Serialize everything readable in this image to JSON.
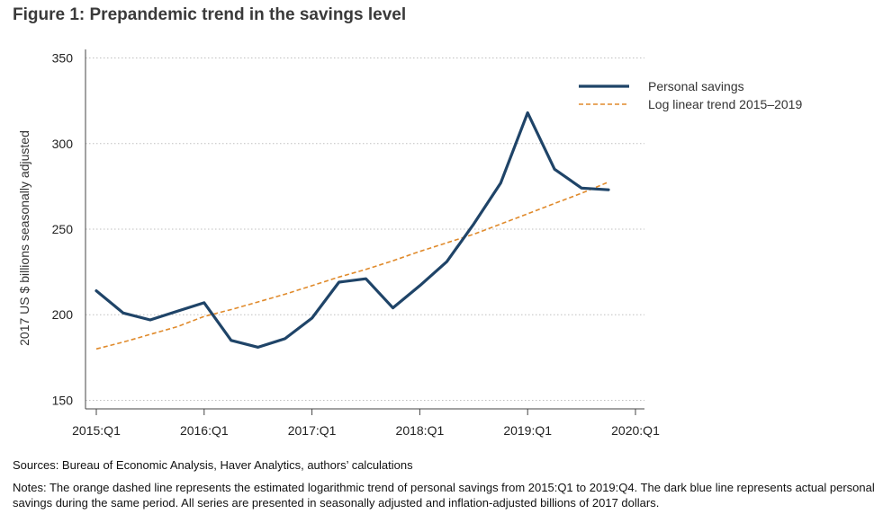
{
  "figure": {
    "title": "Figure 1: Prepandemic trend in the savings level",
    "sources": "Sources: Bureau of Economic Analysis, Haver Analytics, authors’ calculations",
    "notes": "Notes: The orange dashed line represents the estimated logarithmic trend of personal savings from 2015:Q1 to 2019:Q4. The dark blue line represents actual personal savings during the same period. All series are presented in seasonally adjusted and inflation-adjusted billions of 2017 dollars."
  },
  "chart_data": {
    "type": "line",
    "title": "Figure 1: Prepandemic trend in the savings level",
    "xlabel": "",
    "ylabel": "2017 US $ billions seasonally adjusted",
    "ylim": [
      145,
      355
    ],
    "yticks": [
      150,
      200,
      250,
      300,
      350
    ],
    "xticks": [
      {
        "label": "2015:Q1",
        "index": 0
      },
      {
        "label": "2016:Q1",
        "index": 4
      },
      {
        "label": "2017:Q1",
        "index": 8
      },
      {
        "label": "2018:Q1",
        "index": 12
      },
      {
        "label": "2019:Q1",
        "index": 16
      },
      {
        "label": "2020:Q1",
        "index": 20
      }
    ],
    "x_index_range": [
      0,
      20
    ],
    "grid": "horizontal dotted",
    "legend_position": "top-right",
    "categories": [
      "2015:Q1",
      "2015:Q2",
      "2015:Q3",
      "2015:Q4",
      "2016:Q1",
      "2016:Q2",
      "2016:Q3",
      "2016:Q4",
      "2017:Q1",
      "2017:Q2",
      "2017:Q3",
      "2017:Q4",
      "2018:Q1",
      "2018:Q2",
      "2018:Q3",
      "2018:Q4",
      "2019:Q1",
      "2019:Q2",
      "2019:Q3",
      "2019:Q4"
    ],
    "series": [
      {
        "name": "Personal savings",
        "color": "#1f4468",
        "style": "solid",
        "values": [
          214,
          201,
          197,
          202,
          207,
          185,
          181,
          186,
          198,
          219,
          221,
          204,
          217,
          231,
          253,
          277,
          318,
          285,
          274,
          273
        ]
      },
      {
        "name": "Log linear trend 2015–2019",
        "color": "#e08a2b",
        "style": "dashed",
        "values": [
          180,
          184,
          188.5,
          193,
          199,
          203,
          207.5,
          212,
          217,
          222,
          226.5,
          231.5,
          237,
          242,
          247,
          253,
          259,
          265,
          271,
          277.5
        ]
      }
    ]
  }
}
